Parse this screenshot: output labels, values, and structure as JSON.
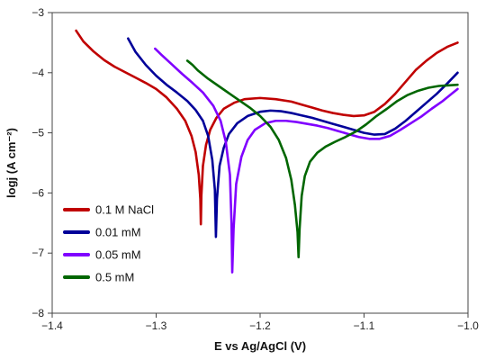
{
  "chart_data": {
    "type": "line",
    "title": "",
    "xlabel": "E vs Ag/AgCl (V)",
    "ylabel": "logj (A cm⁻²)",
    "xlim": [
      -1.4,
      -1.0
    ],
    "ylim": [
      -8,
      -3
    ],
    "xticks": [
      -1.4,
      -1.3,
      -1.2,
      -1.1,
      -1.0
    ],
    "xtick_labels": [
      "−1.4",
      "−1.3",
      "−1.2",
      "−1.1",
      "−1.0"
    ],
    "yticks": [
      -3,
      -4,
      -5,
      -6,
      -7,
      -8
    ],
    "ytick_labels": [
      "−3",
      "−4",
      "−5",
      "−6",
      "−7",
      "−8"
    ],
    "grid": false,
    "legend_position": "bottom-left",
    "series": [
      {
        "name": "0.1 M NaCl",
        "color": "#c00000",
        "x": [
          -1.377,
          -1.37,
          -1.36,
          -1.35,
          -1.34,
          -1.33,
          -1.32,
          -1.31,
          -1.3,
          -1.29,
          -1.28,
          -1.272,
          -1.266,
          -1.262,
          -1.259,
          -1.2575,
          -1.257,
          -1.2565,
          -1.255,
          -1.252,
          -1.248,
          -1.242,
          -1.235,
          -1.225,
          -1.215,
          -1.2,
          -1.185,
          -1.17,
          -1.16,
          -1.15,
          -1.14,
          -1.13,
          -1.12,
          -1.11,
          -1.1,
          -1.09,
          -1.08,
          -1.07,
          -1.06,
          -1.05,
          -1.04,
          -1.03,
          -1.02,
          -1.01
        ],
        "y": [
          -3.3,
          -3.48,
          -3.65,
          -3.79,
          -3.9,
          -3.99,
          -4.08,
          -4.17,
          -4.27,
          -4.41,
          -4.6,
          -4.8,
          -5.05,
          -5.32,
          -5.7,
          -6.1,
          -6.52,
          -6.05,
          -5.55,
          -5.2,
          -4.95,
          -4.75,
          -4.6,
          -4.5,
          -4.44,
          -4.42,
          -4.44,
          -4.48,
          -4.53,
          -4.58,
          -4.63,
          -4.67,
          -4.7,
          -4.72,
          -4.71,
          -4.65,
          -4.52,
          -4.35,
          -4.15,
          -3.95,
          -3.8,
          -3.67,
          -3.57,
          -3.5
        ]
      },
      {
        "name": "0.01 mM",
        "color": "#000099",
        "x": [
          -1.327,
          -1.32,
          -1.31,
          -1.3,
          -1.29,
          -1.28,
          -1.27,
          -1.262,
          -1.255,
          -1.25,
          -1.246,
          -1.2435,
          -1.2425,
          -1.2415,
          -1.239,
          -1.235,
          -1.23,
          -1.222,
          -1.212,
          -1.2,
          -1.19,
          -1.18,
          -1.17,
          -1.16,
          -1.15,
          -1.14,
          -1.13,
          -1.12,
          -1.11,
          -1.1,
          -1.09,
          -1.08,
          -1.07,
          -1.06,
          -1.05,
          -1.04,
          -1.03,
          -1.02,
          -1.01
        ],
        "y": [
          -3.43,
          -3.65,
          -3.87,
          -4.05,
          -4.2,
          -4.33,
          -4.47,
          -4.62,
          -4.8,
          -5.05,
          -5.45,
          -5.95,
          -6.73,
          -6.1,
          -5.55,
          -5.25,
          -5.02,
          -4.84,
          -4.72,
          -4.65,
          -4.63,
          -4.64,
          -4.67,
          -4.71,
          -4.75,
          -4.8,
          -4.85,
          -4.9,
          -4.95,
          -5.0,
          -5.03,
          -5.02,
          -4.93,
          -4.8,
          -4.65,
          -4.5,
          -4.35,
          -4.18,
          -4.0
        ]
      },
      {
        "name": "0.05 mM",
        "color": "#8000ff",
        "x": [
          -1.301,
          -1.295,
          -1.285,
          -1.275,
          -1.265,
          -1.255,
          -1.245,
          -1.238,
          -1.233,
          -1.229,
          -1.2275,
          -1.2268,
          -1.2255,
          -1.223,
          -1.218,
          -1.212,
          -1.205,
          -1.195,
          -1.185,
          -1.175,
          -1.165,
          -1.155,
          -1.145,
          -1.135,
          -1.125,
          -1.115,
          -1.105,
          -1.095,
          -1.085,
          -1.075,
          -1.065,
          -1.055,
          -1.045,
          -1.035,
          -1.025,
          -1.015,
          -1.01
        ],
        "y": [
          -3.6,
          -3.7,
          -3.86,
          -4.02,
          -4.17,
          -4.33,
          -4.55,
          -4.8,
          -5.15,
          -5.7,
          -6.5,
          -7.32,
          -6.6,
          -5.85,
          -5.4,
          -5.12,
          -4.95,
          -4.84,
          -4.8,
          -4.8,
          -4.82,
          -4.85,
          -4.88,
          -4.92,
          -4.97,
          -5.02,
          -5.07,
          -5.1,
          -5.1,
          -5.05,
          -4.95,
          -4.84,
          -4.73,
          -4.6,
          -4.48,
          -4.34,
          -4.27
        ]
      },
      {
        "name": "0.5 mM",
        "color": "#006600",
        "x": [
          -1.27,
          -1.265,
          -1.26,
          -1.25,
          -1.24,
          -1.23,
          -1.22,
          -1.21,
          -1.2,
          -1.19,
          -1.182,
          -1.175,
          -1.17,
          -1.1665,
          -1.164,
          -1.163,
          -1.162,
          -1.16,
          -1.157,
          -1.152,
          -1.145,
          -1.137,
          -1.128,
          -1.118,
          -1.108,
          -1.098,
          -1.088,
          -1.078,
          -1.068,
          -1.058,
          -1.048,
          -1.038,
          -1.028,
          -1.018,
          -1.01
        ],
        "y": [
          -3.8,
          -3.87,
          -3.96,
          -4.1,
          -4.22,
          -4.34,
          -4.46,
          -4.58,
          -4.72,
          -4.9,
          -5.12,
          -5.42,
          -5.78,
          -6.2,
          -6.65,
          -7.07,
          -6.6,
          -6.05,
          -5.72,
          -5.48,
          -5.33,
          -5.23,
          -5.15,
          -5.07,
          -4.98,
          -4.86,
          -4.72,
          -4.6,
          -4.47,
          -4.37,
          -4.3,
          -4.25,
          -4.22,
          -4.21,
          -4.2
        ]
      }
    ]
  }
}
